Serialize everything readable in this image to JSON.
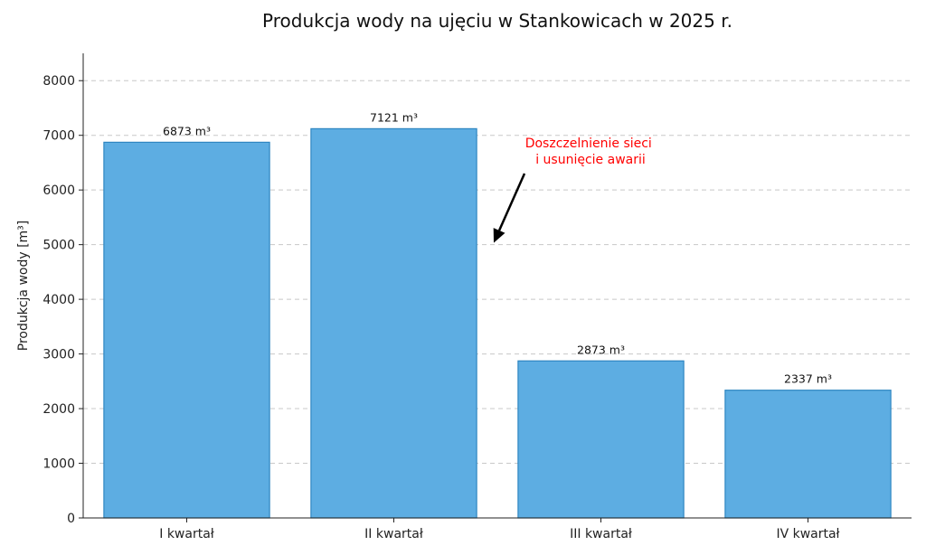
{
  "chart_data": {
    "type": "bar",
    "title": "Produkcja wody na ujęciu w Stankowicach w 2025 r.",
    "xlabel": "",
    "ylabel": "Produkcja wody [m³]",
    "categories": [
      "I kwartał",
      "II kwartał",
      "III kwartał",
      "IV kwartał"
    ],
    "values": [
      6873,
      7121,
      2873,
      2337
    ],
    "data_labels": [
      "6873 m³",
      "7121 m³",
      "2873 m³",
      "2337 m³"
    ],
    "ylim": [
      0,
      8500
    ],
    "yticks": [
      0,
      1000,
      2000,
      3000,
      4000,
      5000,
      6000,
      7000,
      8000
    ],
    "grid": "horizontal dashed",
    "colors": {
      "bar_fill": "#5dade2",
      "bar_edge": "#2e86c1",
      "annotation": "#ff0000"
    },
    "annotation": {
      "lines": [
        "Doszczelnienie sieci",
        "i usunięcie awarii"
      ],
      "arrow_target": {
        "x_between": [
          "II kwartał",
          "III kwartał"
        ],
        "y": 5000
      }
    }
  }
}
